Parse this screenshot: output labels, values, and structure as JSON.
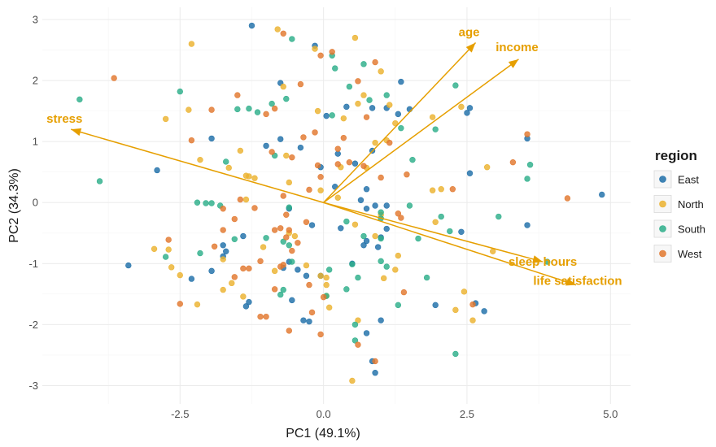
{
  "chart_data": {
    "type": "scatter",
    "title": "",
    "xlabel": "PC1 (49.1%)",
    "ylabel": "PC2 (34.3%)",
    "xlim": [
      -4.9,
      5.35
    ],
    "ylim": [
      -3.3,
      3.2
    ],
    "x_ticks": [
      -2.5,
      0.0,
      2.5,
      5.0
    ],
    "x_tick_labels": [
      "-2.5",
      "0.0",
      "2.5",
      "5.0"
    ],
    "y_ticks": [
      -3,
      -2,
      -1,
      0,
      1,
      2,
      3
    ],
    "y_tick_labels": [
      "-3",
      "-2",
      "-1",
      "0",
      "1",
      "2",
      "3"
    ],
    "grid": true,
    "legend": {
      "title": "region",
      "placement": "right",
      "entries": [
        {
          "label": "East",
          "color": "#1F6FA8"
        },
        {
          "label": "North",
          "color": "#EBB22F"
        },
        {
          "label": "South",
          "color": "#2DAE8A"
        },
        {
          "label": "West",
          "color": "#E2782E"
        }
      ]
    },
    "loadings": {
      "color": "#E69F00",
      "vectors": [
        {
          "label": "age",
          "x": 2.65,
          "y": 2.62
        },
        {
          "label": "income",
          "x": 3.4,
          "y": 2.35
        },
        {
          "label": "stress",
          "x": -4.4,
          "y": 1.2
        },
        {
          "label": "sleep hours",
          "x": 3.82,
          "y": -0.97
        },
        {
          "label": "life satisfaction",
          "x": 4.4,
          "y": -1.35
        }
      ]
    },
    "series": [
      {
        "name": "East",
        "points": [
          [
            -1.25,
            2.9
          ],
          [
            -0.15,
            2.57
          ],
          [
            -0.75,
            1.96
          ],
          [
            1.35,
            1.98
          ],
          [
            1.1,
            1.55
          ],
          [
            1.5,
            1.53
          ],
          [
            0.85,
            1.55
          ],
          [
            0.4,
            1.57
          ],
          [
            0.05,
            1.42
          ],
          [
            1.3,
            1.45
          ],
          [
            2.55,
            1.55
          ],
          [
            2.5,
            1.47
          ],
          [
            -1.95,
            1.05
          ],
          [
            -1.0,
            0.93
          ],
          [
            -0.75,
            1.04
          ],
          [
            -0.4,
            0.9
          ],
          [
            0.25,
            0.8
          ],
          [
            0.85,
            0.85
          ],
          [
            3.55,
            1.05
          ],
          [
            -2.9,
            0.53
          ],
          [
            -0.05,
            0.58
          ],
          [
            0.55,
            0.64
          ],
          [
            2.55,
            0.48
          ],
          [
            4.85,
            0.13
          ],
          [
            0.2,
            0.26
          ],
          [
            0.75,
            0.22
          ],
          [
            0.65,
            0.04
          ],
          [
            0.75,
            -0.1
          ],
          [
            0.9,
            -0.05
          ],
          [
            1.1,
            -0.05
          ],
          [
            -0.6,
            -0.1
          ],
          [
            -0.2,
            -0.37
          ],
          [
            0.3,
            -0.42
          ],
          [
            1.1,
            -0.43
          ],
          [
            1.0,
            -0.57
          ],
          [
            0.75,
            -0.63
          ],
          [
            0.7,
            -0.7
          ],
          [
            0.95,
            -0.73
          ],
          [
            2.4,
            -0.48
          ],
          [
            3.55,
            -0.37
          ],
          [
            -1.4,
            -0.55
          ],
          [
            -1.75,
            -0.7
          ],
          [
            -1.7,
            -0.8
          ],
          [
            -1.75,
            -0.88
          ],
          [
            -0.6,
            -0.97
          ],
          [
            -0.7,
            -1.07
          ],
          [
            -0.45,
            -1.1
          ],
          [
            -0.3,
            -1.2
          ],
          [
            -0.05,
            -1.2
          ],
          [
            0.5,
            -1.0
          ],
          [
            -1.95,
            -1.12
          ],
          [
            -2.3,
            -1.25
          ],
          [
            -3.4,
            -1.03
          ],
          [
            -1.3,
            -1.63
          ],
          [
            -1.35,
            -1.7
          ],
          [
            -0.55,
            -1.6
          ],
          [
            -0.35,
            -1.93
          ],
          [
            -0.25,
            -1.95
          ],
          [
            1.0,
            -1.93
          ],
          [
            1.95,
            -1.68
          ],
          [
            2.8,
            -1.78
          ],
          [
            0.75,
            -2.14
          ],
          [
            0.85,
            -2.6
          ],
          [
            0.9,
            -2.79
          ],
          [
            2.65,
            -1.65
          ]
        ]
      },
      {
        "name": "North",
        "points": [
          [
            -0.8,
            2.84
          ],
          [
            0.55,
            2.7
          ],
          [
            -2.3,
            2.6
          ],
          [
            -0.15,
            2.52
          ],
          [
            1.0,
            2.15
          ],
          [
            -0.7,
            1.9
          ],
          [
            0.7,
            1.76
          ],
          [
            0.6,
            1.62
          ],
          [
            1.15,
            1.6
          ],
          [
            -2.35,
            1.52
          ],
          [
            -0.1,
            1.5
          ],
          [
            0.35,
            1.38
          ],
          [
            1.25,
            1.3
          ],
          [
            1.9,
            1.4
          ],
          [
            2.4,
            1.57
          ],
          [
            -2.75,
            1.37
          ],
          [
            -1.45,
            0.85
          ],
          [
            -0.65,
            0.77
          ],
          [
            0.9,
            0.98
          ],
          [
            1.1,
            1.02
          ],
          [
            -2.15,
            0.7
          ],
          [
            -1.65,
            0.57
          ],
          [
            -1.35,
            0.44
          ],
          [
            -1.3,
            0.43
          ],
          [
            -1.2,
            0.4
          ],
          [
            -0.6,
            0.33
          ],
          [
            0.3,
            0.58
          ],
          [
            0.75,
            0.57
          ],
          [
            1.9,
            0.2
          ],
          [
            2.05,
            0.22
          ],
          [
            2.85,
            0.58
          ],
          [
            -1.35,
            0.05
          ],
          [
            0.25,
            0.08
          ],
          [
            -0.05,
            0.2
          ],
          [
            1.0,
            -0.2
          ],
          [
            1.95,
            -0.32
          ],
          [
            0.55,
            -0.36
          ],
          [
            -0.6,
            -0.5
          ],
          [
            -0.5,
            -0.55
          ],
          [
            0.9,
            -0.55
          ],
          [
            1.3,
            -0.87
          ],
          [
            2.95,
            -0.8
          ],
          [
            -2.95,
            -0.76
          ],
          [
            -2.7,
            -0.77
          ],
          [
            -1.75,
            -0.93
          ],
          [
            -1.05,
            -0.73
          ],
          [
            -0.3,
            -1.03
          ],
          [
            1.25,
            -1.1
          ],
          [
            -0.85,
            -1.12
          ],
          [
            -2.65,
            -1.06
          ],
          [
            -2.5,
            -1.19
          ],
          [
            -1.6,
            -1.32
          ],
          [
            -0.05,
            -1.2
          ],
          [
            0.05,
            -1.23
          ],
          [
            1.05,
            -1.24
          ],
          [
            0.05,
            -1.35
          ],
          [
            -1.75,
            -1.43
          ],
          [
            -1.4,
            -1.54
          ],
          [
            0.05,
            -1.53
          ],
          [
            0.1,
            -1.72
          ],
          [
            2.45,
            -1.46
          ],
          [
            -2.2,
            -1.67
          ],
          [
            2.3,
            -1.76
          ],
          [
            0.6,
            -1.93
          ],
          [
            2.6,
            -1.93
          ],
          [
            0.5,
            -2.92
          ]
        ]
      },
      {
        "name": "South",
        "points": [
          [
            -0.55,
            2.68
          ],
          [
            0.15,
            2.41
          ],
          [
            0.7,
            2.27
          ],
          [
            0.2,
            2.2
          ],
          [
            0.45,
            1.9
          ],
          [
            2.3,
            1.92
          ],
          [
            -2.5,
            1.82
          ],
          [
            -4.25,
            1.69
          ],
          [
            -0.65,
            1.7
          ],
          [
            -0.9,
            1.62
          ],
          [
            -1.5,
            1.53
          ],
          [
            -1.3,
            1.54
          ],
          [
            -1.15,
            1.48
          ],
          [
            0.8,
            1.68
          ],
          [
            1.1,
            1.76
          ],
          [
            0.15,
            1.43
          ],
          [
            1.35,
            1.22
          ],
          [
            1.95,
            1.2
          ],
          [
            -0.85,
            0.77
          ],
          [
            1.55,
            0.7
          ],
          [
            3.6,
            0.62
          ],
          [
            3.55,
            0.39
          ],
          [
            -1.7,
            0.67
          ],
          [
            -3.9,
            0.35
          ],
          [
            -2.2,
            0.0
          ],
          [
            -2.05,
            -0.01
          ],
          [
            -1.95,
            -0.01
          ],
          [
            -1.8,
            -0.05
          ],
          [
            -0.6,
            -0.08
          ],
          [
            1.0,
            -0.16
          ],
          [
            1.0,
            -0.26
          ],
          [
            1.5,
            -0.05
          ],
          [
            2.05,
            -0.23
          ],
          [
            3.05,
            -0.23
          ],
          [
            2.2,
            -0.47
          ],
          [
            0.4,
            -0.31
          ],
          [
            0.7,
            -0.55
          ],
          [
            1.0,
            -0.59
          ],
          [
            1.65,
            -0.59
          ],
          [
            -1.0,
            -0.58
          ],
          [
            -1.55,
            -0.6
          ],
          [
            -0.7,
            -0.64
          ],
          [
            -0.6,
            -0.7
          ],
          [
            -2.15,
            -0.83
          ],
          [
            -2.75,
            -0.89
          ],
          [
            -0.55,
            -0.97
          ],
          [
            0.5,
            -1.01
          ],
          [
            1.0,
            -0.96
          ],
          [
            1.1,
            -1.05
          ],
          [
            3.9,
            -0.97
          ],
          [
            0.1,
            -1.1
          ],
          [
            0.6,
            -1.23
          ],
          [
            1.8,
            -1.23
          ],
          [
            -0.7,
            -1.43
          ],
          [
            -0.75,
            -1.51
          ],
          [
            0.4,
            -1.42
          ],
          [
            0.05,
            -1.53
          ],
          [
            1.3,
            -1.68
          ],
          [
            0.55,
            -2.0
          ],
          [
            0.55,
            -2.26
          ],
          [
            2.3,
            -2.48
          ]
        ]
      },
      {
        "name": "West",
        "points": [
          [
            -0.7,
            2.77
          ],
          [
            0.15,
            2.47
          ],
          [
            -0.05,
            2.41
          ],
          [
            0.9,
            2.3
          ],
          [
            -3.65,
            2.04
          ],
          [
            -0.4,
            1.94
          ],
          [
            0.6,
            1.99
          ],
          [
            -1.5,
            1.76
          ],
          [
            -1.95,
            1.52
          ],
          [
            -1.0,
            1.45
          ],
          [
            -0.85,
            1.54
          ],
          [
            0.75,
            1.4
          ],
          [
            -2.3,
            1.02
          ],
          [
            -0.35,
            1.07
          ],
          [
            -0.15,
            1.15
          ],
          [
            0.35,
            1.06
          ],
          [
            1.15,
            0.98
          ],
          [
            3.55,
            1.12
          ],
          [
            -0.9,
            0.83
          ],
          [
            -0.55,
            0.74
          ],
          [
            0.25,
            0.88
          ],
          [
            0.45,
            0.66
          ],
          [
            0.25,
            0.63
          ],
          [
            1.45,
            0.46
          ],
          [
            3.3,
            0.66
          ],
          [
            -0.1,
            0.61
          ],
          [
            0.7,
            0.6
          ],
          [
            1.0,
            0.41
          ],
          [
            2.25,
            0.22
          ],
          [
            -0.05,
            0.42
          ],
          [
            -0.25,
            0.21
          ],
          [
            -0.7,
            0.11
          ],
          [
            -1.45,
            0.05
          ],
          [
            4.25,
            0.07
          ],
          [
            -1.75,
            -0.1
          ],
          [
            -1.2,
            -0.09
          ],
          [
            -1.55,
            -0.27
          ],
          [
            -0.65,
            -0.2
          ],
          [
            -0.3,
            -0.32
          ],
          [
            1.35,
            -0.25
          ],
          [
            1.3,
            -0.18
          ],
          [
            -1.75,
            -0.45
          ],
          [
            -0.85,
            -0.45
          ],
          [
            -0.75,
            -0.42
          ],
          [
            -0.6,
            -0.45
          ],
          [
            -0.65,
            -0.57
          ],
          [
            -2.7,
            -0.61
          ],
          [
            -1.9,
            -0.72
          ],
          [
            -0.55,
            -0.79
          ],
          [
            -0.45,
            -0.66
          ],
          [
            -1.1,
            -0.96
          ],
          [
            -0.7,
            -1.02
          ],
          [
            -0.75,
            -1.05
          ],
          [
            -1.4,
            -1.08
          ],
          [
            -1.3,
            -1.08
          ],
          [
            -1.55,
            -1.22
          ],
          [
            -0.85,
            -1.42
          ],
          [
            -0.25,
            -1.35
          ],
          [
            0.0,
            -1.55
          ],
          [
            1.4,
            -1.47
          ],
          [
            -0.2,
            -1.8
          ],
          [
            -2.5,
            -1.66
          ],
          [
            -1.1,
            -1.87
          ],
          [
            -1.0,
            -1.87
          ],
          [
            -0.6,
            -2.1
          ],
          [
            -0.05,
            -2.16
          ],
          [
            0.6,
            -2.33
          ],
          [
            0.9,
            -2.6
          ],
          [
            2.6,
            -1.67
          ]
        ]
      }
    ]
  }
}
